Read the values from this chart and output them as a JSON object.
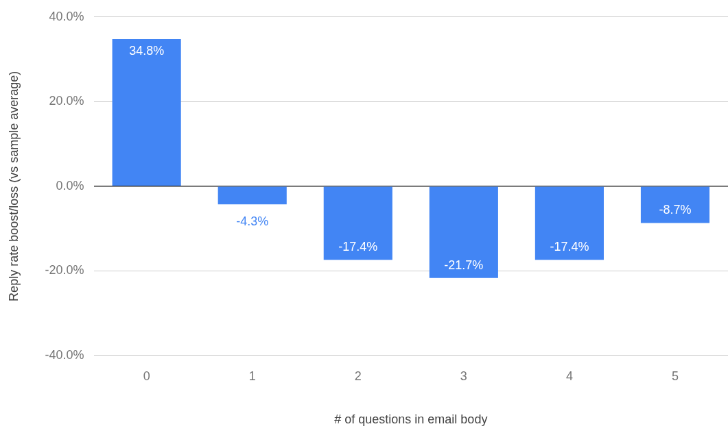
{
  "chart_data": {
    "type": "bar",
    "xlabel": "# of questions in email body",
    "ylabel": "Reply rate boost/loss (vs sample average)",
    "categories": [
      "0",
      "1",
      "2",
      "3",
      "4",
      "5"
    ],
    "values": [
      34.8,
      -4.3,
      -17.4,
      -21.7,
      -17.4,
      -8.7
    ],
    "value_labels": [
      "34.8%",
      "-4.3%",
      "-17.4%",
      "-21.7%",
      "-17.4%",
      "-8.7%"
    ],
    "color": "#4285f4",
    "ylim": [
      -40,
      40
    ],
    "yticks": [
      {
        "value": -40,
        "label": "-40.0%"
      },
      {
        "value": -20,
        "label": "-20.0%"
      },
      {
        "value": 0,
        "label": "0.0%"
      },
      {
        "value": 20,
        "label": "20.0%"
      },
      {
        "value": 40,
        "label": "40.0%"
      }
    ],
    "grid": "y",
    "legend": false
  }
}
